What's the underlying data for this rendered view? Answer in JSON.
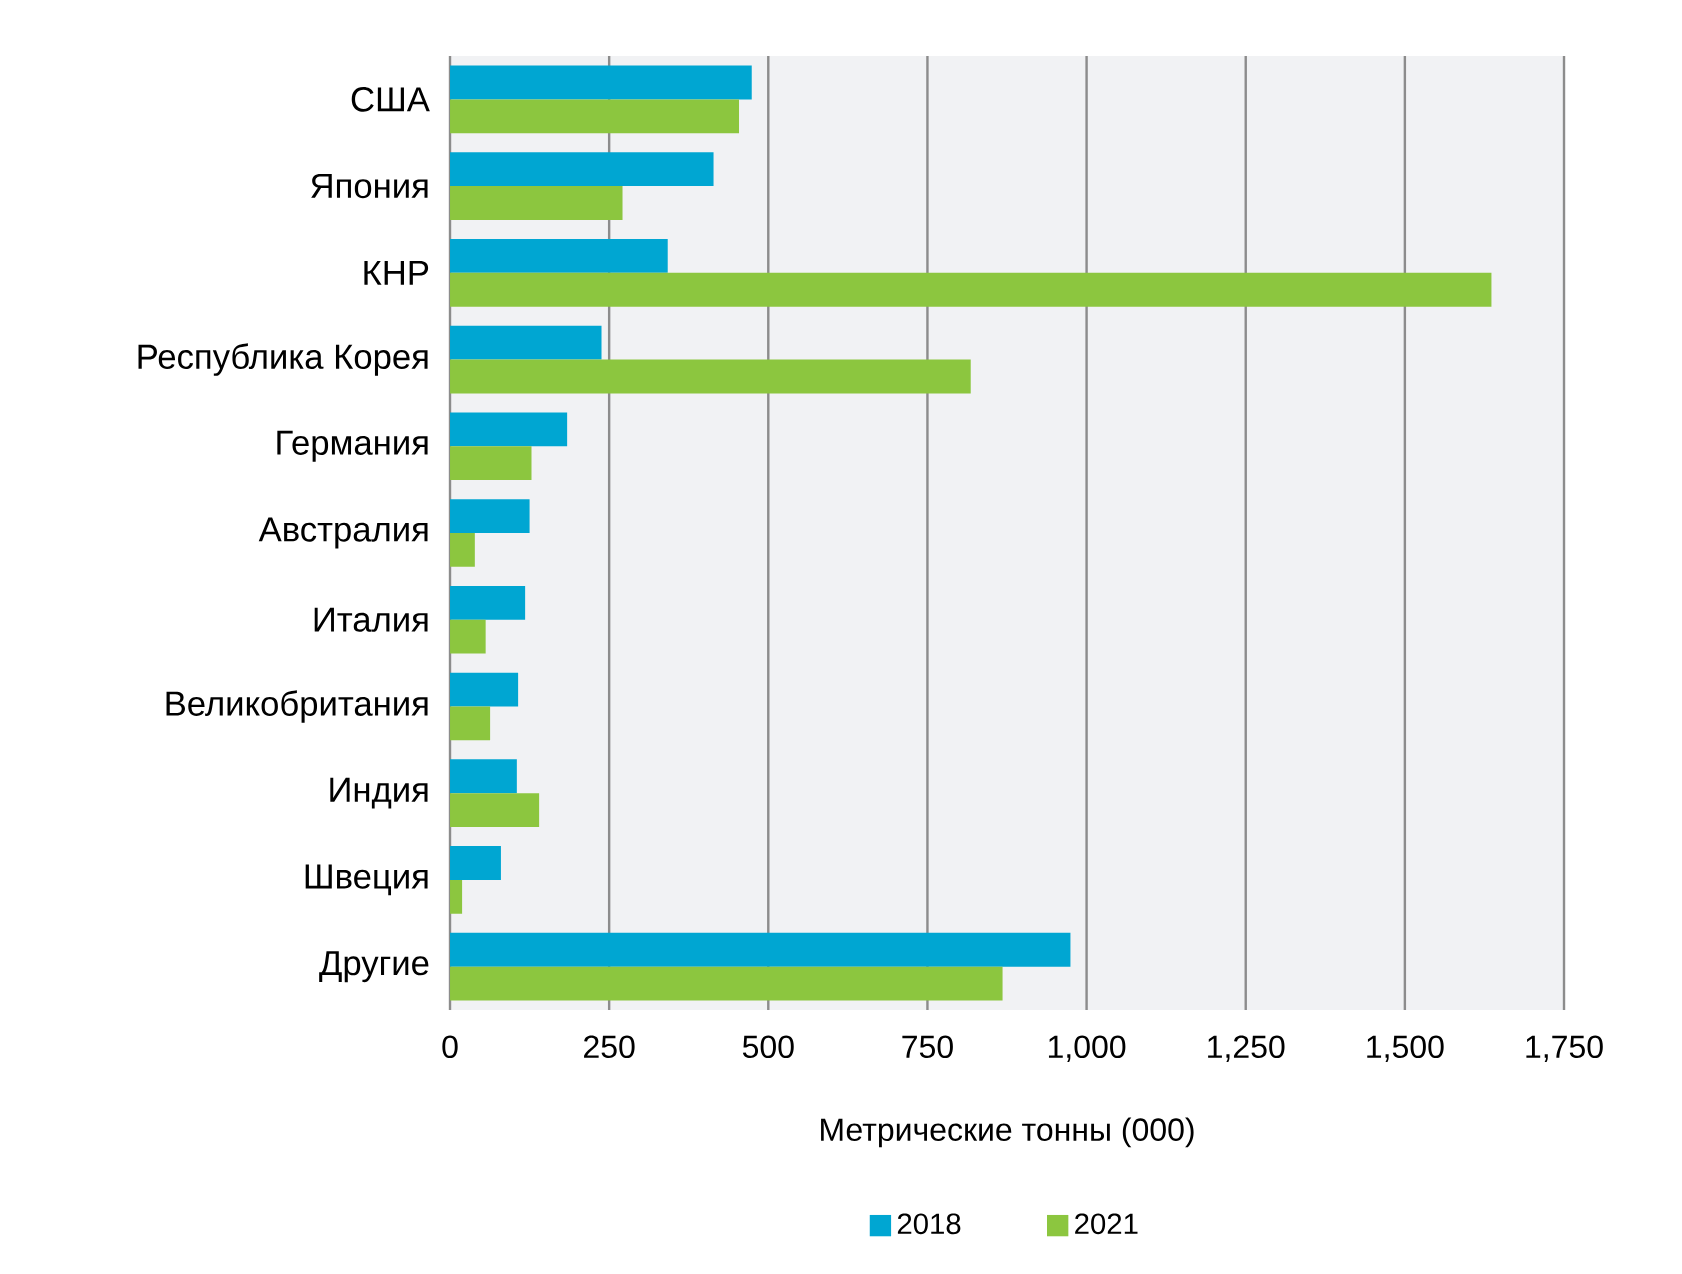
{
  "chart_data": {
    "type": "bar",
    "orientation": "horizontal",
    "xlabel": "Метрические тонны (000)",
    "categories": [
      "США",
      "Япония",
      "КНР",
      "Республика Корея",
      "Германия",
      "Австралия",
      "Италия",
      "Великобритания",
      "Индия",
      "Швеция",
      "Другие"
    ],
    "series": [
      {
        "name": "2018",
        "color": "#00a6d2",
        "values": [
          474,
          414,
          342,
          238,
          184,
          125,
          118,
          107,
          105,
          80,
          975
        ]
      },
      {
        "name": "2021",
        "color": "#8cc63f",
        "values": [
          454,
          271,
          1636,
          818,
          128,
          39,
          56,
          63,
          140,
          19,
          868
        ]
      }
    ],
    "xlim": [
      0,
      1750
    ],
    "xticks": [
      0,
      250,
      500,
      750,
      {
        "value": 1000,
        "label": "1,000"
      },
      {
        "value": 1250,
        "label": "1,250"
      },
      {
        "value": 1500,
        "label": "1,500"
      },
      {
        "value": 1750,
        "label": "1,750"
      }
    ],
    "grid": "x",
    "legend": "bottom"
  }
}
